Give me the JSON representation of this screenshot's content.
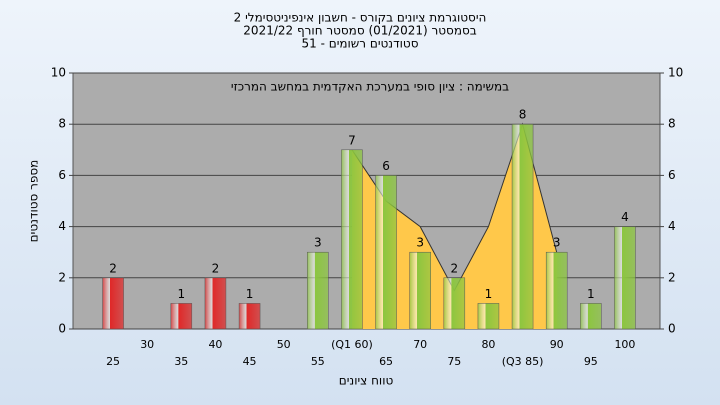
{
  "chart_data": {
    "type": "bar",
    "title_lines": [
      "היסטוגרמת ציונים בקורס - חשבון אינפיניטסימלי 2",
      "בסמסטר  (01/2021)  סמסטר חורף 2021/22",
      "סטודנטים רשומים - 51"
    ],
    "annotation": "במשימה : ציון סופי במערכת האקדמית במחשב המרכזי",
    "y_label": "מספר סטודנטים",
    "x_label": "טווח ציונים",
    "categories": [
      "25",
      "30",
      "35",
      "40",
      "45",
      "50",
      "55",
      "(Q1 60)",
      "65",
      "70",
      "75",
      "80",
      "(Q3 85)",
      "90",
      "95",
      "100"
    ],
    "values": [
      2,
      0,
      1,
      2,
      1,
      0,
      3,
      7,
      6,
      3,
      2,
      1,
      8,
      3,
      1,
      4
    ],
    "colors": [
      "#e02828",
      "#e02828",
      "#e02828",
      "#e02828",
      "#e02828",
      "#e02828",
      "#8cc63f",
      "#8cc63f",
      "#8cc63f",
      "#8cc63f",
      "#8cc63f",
      "#8cc63f",
      "#8cc63f",
      "#8cc63f",
      "#8cc63f",
      "#8cc63f"
    ],
    "area": {
      "color": "#ffc84a",
      "values": [
        null,
        null,
        null,
        null,
        null,
        null,
        null,
        7,
        5,
        4,
        1.5,
        4,
        8,
        3,
        null,
        null
      ]
    },
    "ylim": [
      0,
      10
    ],
    "yticks": [
      0,
      2,
      4,
      6,
      8,
      10
    ],
    "y2lim": [
      0,
      10
    ],
    "y2ticks": [
      0,
      2,
      4,
      6,
      8,
      10
    ],
    "grid": true
  }
}
